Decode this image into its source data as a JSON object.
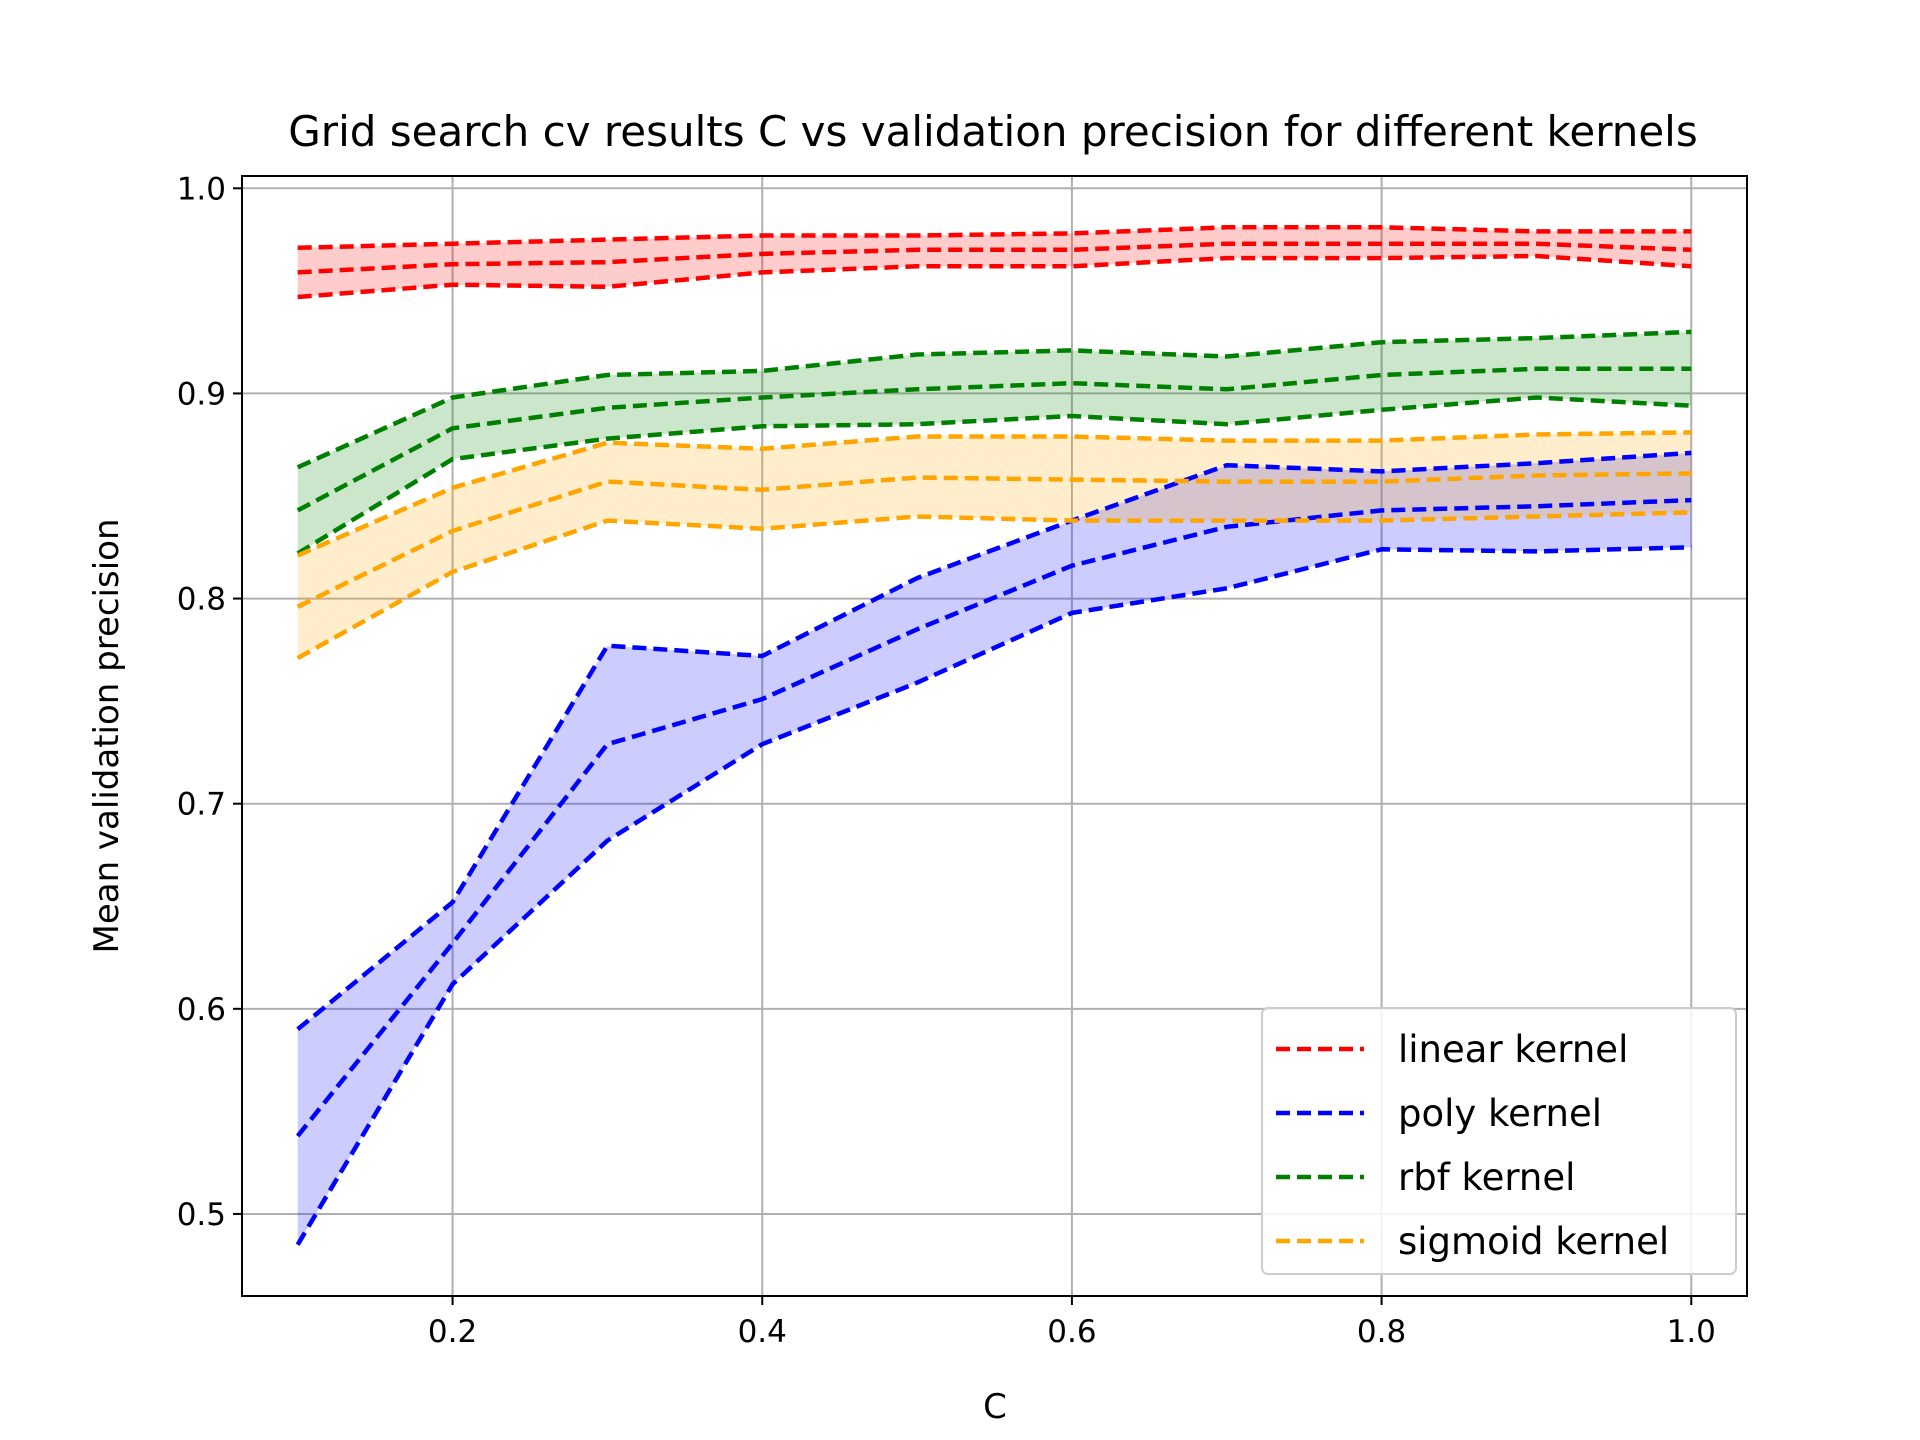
{
  "chart_data": {
    "type": "line",
    "title": "Grid search cv results C vs validation precision for different kernels",
    "xlabel": "C",
    "ylabel": "Mean validation precision",
    "xlim": [
      0.064,
      1.036
    ],
    "ylim": [
      0.46,
      1.006
    ],
    "xticks": [
      0.2,
      0.4,
      0.6,
      0.8,
      1.0
    ],
    "xtick_labels": [
      "0.2",
      "0.4",
      "0.6",
      "0.8",
      "1.0"
    ],
    "yticks": [
      0.5,
      0.6,
      0.7,
      0.8,
      0.9,
      1.0
    ],
    "ytick_labels": [
      "0.5",
      "0.6",
      "0.7",
      "0.8",
      "0.9",
      "1.0"
    ],
    "grid": true,
    "legend_position": "lower-right",
    "x": [
      0.1,
      0.2,
      0.3,
      0.4,
      0.5,
      0.6,
      0.7,
      0.8,
      0.9,
      1.0
    ],
    "series": [
      {
        "name": "linear kernel",
        "color": "#ff0000",
        "mean": [
          0.959,
          0.963,
          0.964,
          0.968,
          0.97,
          0.97,
          0.973,
          0.973,
          0.973,
          0.97
        ],
        "upper": [
          0.971,
          0.973,
          0.975,
          0.977,
          0.977,
          0.978,
          0.981,
          0.981,
          0.979,
          0.979
        ],
        "lower": [
          0.947,
          0.953,
          0.952,
          0.959,
          0.962,
          0.962,
          0.966,
          0.966,
          0.967,
          0.962
        ]
      },
      {
        "name": "poly kernel",
        "color": "#0000ff",
        "mean": [
          0.538,
          0.632,
          0.729,
          0.751,
          0.785,
          0.816,
          0.835,
          0.843,
          0.845,
          0.848
        ],
        "upper": [
          0.59,
          0.652,
          0.777,
          0.772,
          0.81,
          0.838,
          0.865,
          0.862,
          0.866,
          0.871
        ],
        "lower": [
          0.485,
          0.612,
          0.682,
          0.729,
          0.759,
          0.793,
          0.805,
          0.824,
          0.823,
          0.825
        ]
      },
      {
        "name": "rbf kernel",
        "color": "#008000",
        "mean": [
          0.843,
          0.883,
          0.893,
          0.898,
          0.902,
          0.905,
          0.902,
          0.909,
          0.912,
          0.912
        ],
        "upper": [
          0.864,
          0.898,
          0.909,
          0.911,
          0.919,
          0.921,
          0.918,
          0.925,
          0.927,
          0.93
        ],
        "lower": [
          0.822,
          0.868,
          0.878,
          0.884,
          0.885,
          0.889,
          0.885,
          0.892,
          0.898,
          0.894
        ]
      },
      {
        "name": "sigmoid kernel",
        "color": "#ffa500",
        "mean": [
          0.796,
          0.833,
          0.857,
          0.853,
          0.859,
          0.858,
          0.857,
          0.857,
          0.86,
          0.861
        ],
        "upper": [
          0.821,
          0.854,
          0.876,
          0.873,
          0.879,
          0.879,
          0.877,
          0.877,
          0.88,
          0.881
        ],
        "lower": [
          0.771,
          0.813,
          0.838,
          0.834,
          0.84,
          0.838,
          0.838,
          0.838,
          0.84,
          0.842
        ]
      }
    ]
  }
}
